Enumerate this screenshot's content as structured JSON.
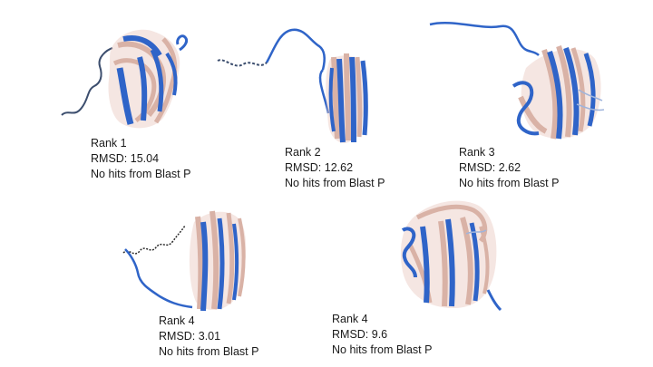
{
  "structures": [
    {
      "rank": "Rank 1",
      "rmsd": "RMSD: 15.04",
      "blast": "No hits from Blast P"
    },
    {
      "rank": "Rank 2",
      "rmsd": "RMSD: 12.62",
      "blast": "No hits from Blast P"
    },
    {
      "rank": "Rank 3",
      "rmsd": "RMSD: 2.62",
      "blast": "No hits from Blast P"
    },
    {
      "rank": "Rank 4",
      "rmsd": "RMSD: 3.01",
      "blast": "No hits from Blast P"
    },
    {
      "rank": "Rank 4",
      "rmsd": "RMSD: 9.6",
      "blast": "No hits from Blast P"
    }
  ],
  "colors": {
    "predicted": "#2f64c8",
    "reference": "#d9b2a6",
    "coil": "#3c4e6e",
    "text": "#1a1a1a"
  },
  "icons": {
    "structure_image": "protein-ribbon-overlay"
  }
}
